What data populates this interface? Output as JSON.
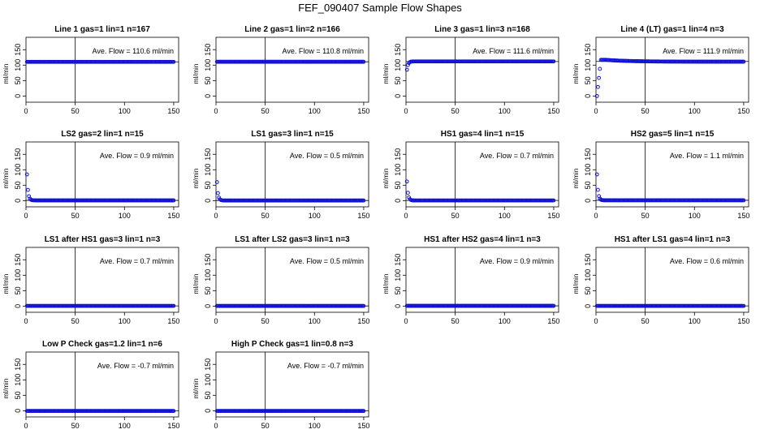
{
  "title": "FEF_090407  Sample Flow Shapes",
  "colors": {
    "points": "#1010d8",
    "frame": "#000000"
  },
  "axes": {
    "xlim": [
      0,
      155
    ],
    "ylim": [
      -20,
      190
    ],
    "xticks": [
      0,
      50,
      100,
      150
    ],
    "yticks": [
      0,
      50,
      100,
      150
    ],
    "ylabel": "ml/min",
    "vline_x": 50
  },
  "chart_data": [
    {
      "type": "scatter",
      "title": "Line 1 gas=1 lin=1 n=167",
      "annotation": "Ave. Flow =  110.6  ml/min",
      "hline": 110.6,
      "curve": "flat",
      "start": 110.6,
      "end": 110.6,
      "n": 150
    },
    {
      "type": "scatter",
      "title": "Line 2 gas=1 lin=2 n=166",
      "annotation": "Ave. Flow =  110.8  ml/min",
      "hline": 110.8,
      "curve": "flat",
      "start": 110.8,
      "end": 110.8,
      "n": 150
    },
    {
      "type": "scatter",
      "title": "Line 3 gas=1 lin=3 n=168",
      "annotation": "Ave. Flow =  111.6  ml/min",
      "hline": 111.6,
      "curve": "rise",
      "start": 85,
      "end": 112,
      "n": 150
    },
    {
      "type": "scatter",
      "title": "Line 4 (LT) gas=1 lin=4 n=3",
      "annotation": "Ave. Flow =  111.9  ml/min",
      "hline": 111.9,
      "curve": "overshoot",
      "start": 0,
      "end": 111,
      "n": 150
    },
    {
      "type": "scatter",
      "title": "LS2 gas=2 lin=1 n=15",
      "annotation": "Ave. Flow =  0.9  ml/min",
      "hline": 0.9,
      "curve": "decay",
      "start": 85,
      "end": 0.9,
      "n": 150
    },
    {
      "type": "scatter",
      "title": "LS1 gas=3 lin=1 n=15",
      "annotation": "Ave. Flow =  0.5  ml/min",
      "hline": 0.5,
      "curve": "decay",
      "start": 60,
      "end": 0.5,
      "n": 150
    },
    {
      "type": "scatter",
      "title": "HS1 gas=4 lin=1 n=15",
      "annotation": "Ave. Flow =  0.7  ml/min",
      "hline": 0.7,
      "curve": "decay",
      "start": 62,
      "end": 0.7,
      "n": 150
    },
    {
      "type": "scatter",
      "title": "HS2 gas=5 lin=1 n=15",
      "annotation": "Ave. Flow =  1.1  ml/min",
      "hline": 1.1,
      "curve": "decay",
      "start": 85,
      "end": 1.1,
      "n": 150
    },
    {
      "type": "scatter",
      "title": "LS1 after HS1 gas=3 lin=1 n=3",
      "annotation": "Ave. Flow =  0.7  ml/min",
      "hline": 0.7,
      "curve": "flat",
      "start": 0.7,
      "end": 0.7,
      "n": 150
    },
    {
      "type": "scatter",
      "title": "LS1 after LS2 gas=3 lin=1 n=3",
      "annotation": "Ave. Flow =  0.5  ml/min",
      "hline": 0.5,
      "curve": "flat",
      "start": 0.5,
      "end": 0.5,
      "n": 150
    },
    {
      "type": "scatter",
      "title": "HS1 after HS2 gas=4 lin=1 n=3",
      "annotation": "Ave. Flow =  0.9  ml/min",
      "hline": 0.9,
      "curve": "flat",
      "start": 0.9,
      "end": 0.9,
      "n": 150
    },
    {
      "type": "scatter",
      "title": "HS1 after LS1 gas=4 lin=1 n=3",
      "annotation": "Ave. Flow =  0.6  ml/min",
      "hline": 0.6,
      "curve": "flat",
      "start": 0.6,
      "end": 0.6,
      "n": 150
    },
    {
      "type": "scatter",
      "title": "Low P Check gas=1.2 lin=1 n=6",
      "annotation": "Ave. Flow =  -0.7  ml/min",
      "hline": -0.7,
      "curve": "flat",
      "start": -0.7,
      "end": -0.7,
      "n": 150
    },
    {
      "type": "scatter",
      "title": "High P Check gas=1 lin=0.8 n=3",
      "annotation": "Ave. Flow =  -0.7  ml/min",
      "hline": -0.7,
      "curve": "flat",
      "start": -0.7,
      "end": -0.7,
      "n": 150
    }
  ]
}
